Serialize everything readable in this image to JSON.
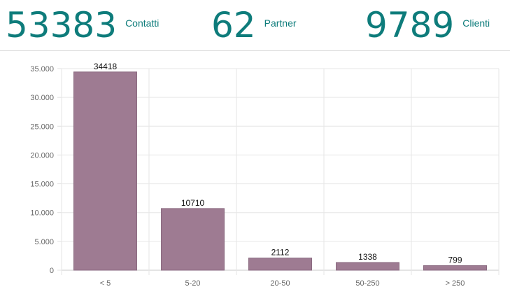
{
  "kpis": [
    {
      "value": "53383",
      "label": "Contatti"
    },
    {
      "value": "62",
      "label": "Partner"
    },
    {
      "value": "9789",
      "label": "Clienti"
    }
  ],
  "chart_data": {
    "type": "bar",
    "categories": [
      "< 5",
      "5-20",
      "20-50",
      "50-250",
      "> 250"
    ],
    "values": [
      34418,
      10710,
      2112,
      1338,
      799
    ],
    "data_labels": [
      "34418",
      "10710",
      "2112",
      "1338",
      "799"
    ],
    "ylim": [
      0,
      35000
    ],
    "yticks": [
      0,
      5000,
      10000,
      15000,
      20000,
      25000,
      30000,
      35000
    ],
    "ytick_labels": [
      "0",
      "5.000",
      "10.000",
      "15.000",
      "20.000",
      "25.000",
      "30.000",
      "35.000"
    ],
    "grid": true,
    "bar_color": "#9e7b92",
    "bar_border_color": "#8a6a80",
    "kpi_color": "#0e7c7b"
  }
}
